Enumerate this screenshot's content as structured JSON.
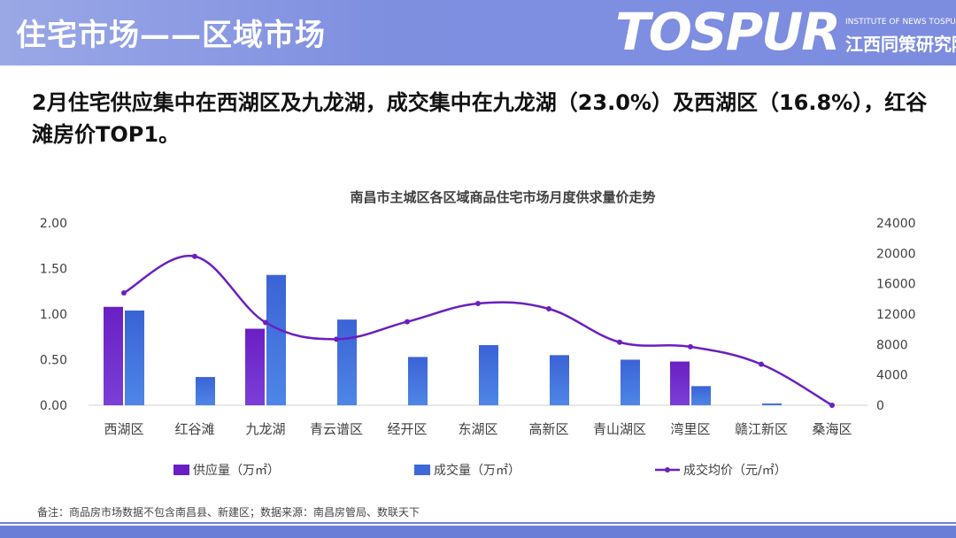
{
  "header": {
    "title": "住宅市场——区域市场",
    "logo_word": "TOSPUR",
    "logo_sub_en": "INSTITUTE OF NEWS TOSPUR",
    "logo_sub_cn": "江西同策研究院"
  },
  "headline": "2月住宅供应集中在西湖区及九龙湖，成交集中在九龙湖（23.0%）及西湖区（16.8%），红谷滩房价TOP1。",
  "note": "备注：商品房市场数据不包含南昌县、新建区；数据来源：南昌房管局、数联天下",
  "colors": {
    "supply": "#6a1fc4",
    "deal": "#3c68d8",
    "price": "#6b1fc0",
    "header": "#8494e0"
  },
  "chart_data": {
    "type": "bar",
    "title": "南昌市主城区各区域商品住宅市场月度供求量价走势",
    "categories": [
      "西湖区",
      "红谷滩",
      "九龙湖",
      "青云谱区",
      "经开区",
      "东湖区",
      "高新区",
      "青山湖区",
      "湾里区",
      "赣江新区",
      "桑海区"
    ],
    "left_axis": {
      "ticks": [
        "0.00",
        "0.50",
        "1.00",
        "1.50",
        "2.00"
      ],
      "ylim": [
        0,
        2
      ]
    },
    "right_axis": {
      "ticks": [
        "0",
        "4000",
        "8000",
        "12000",
        "16000",
        "20000",
        "24000"
      ],
      "ylim": [
        0,
        24000
      ]
    },
    "series": [
      {
        "name": "供应量（万㎡）",
        "type": "bar",
        "axis": "left",
        "values": [
          1.08,
          0,
          0.84,
          0,
          0,
          0,
          0,
          0,
          0.48,
          0,
          0
        ]
      },
      {
        "name": "成交量（万㎡）",
        "type": "bar",
        "axis": "left",
        "values": [
          1.04,
          0.31,
          1.43,
          0.94,
          0.53,
          0.66,
          0.55,
          0.5,
          0.21,
          0.02,
          0
        ]
      },
      {
        "name": "成交均价（元/㎡）",
        "type": "line",
        "axis": "right",
        "values": [
          14800,
          19600,
          10900,
          8700,
          11000,
          13400,
          12700,
          8300,
          7700,
          5400,
          0
        ]
      }
    ],
    "legend_position": "bottom",
    "grid": false
  }
}
